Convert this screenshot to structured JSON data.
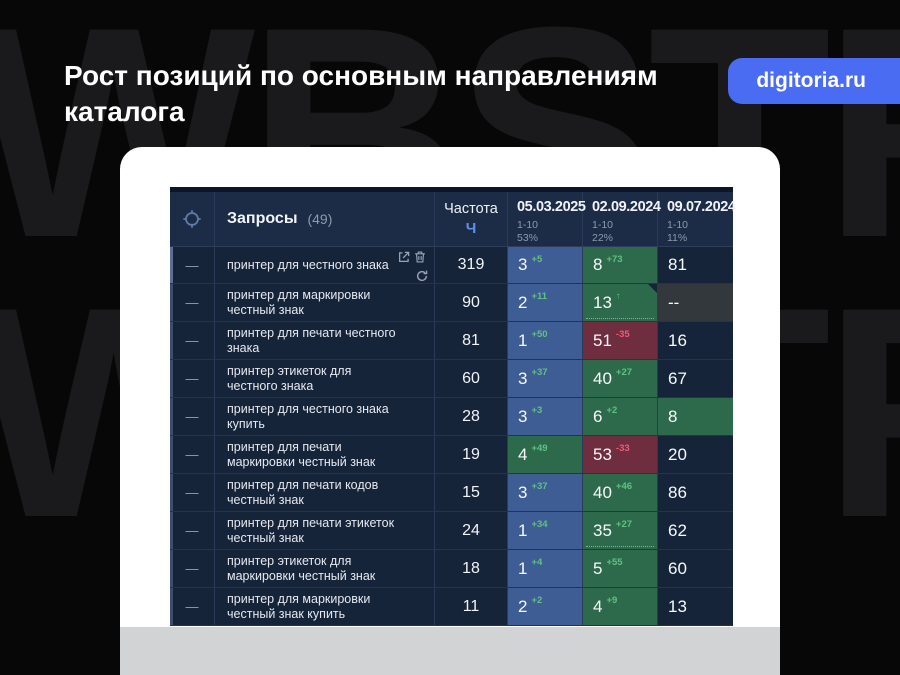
{
  "slide": {
    "title": "Рост позиций по основным направлениям каталога",
    "badge": "digitoria.ru",
    "watermark": "WBSTR"
  },
  "icons": {
    "header_target": "crosshair-icon",
    "row_handle": "dash-glyph",
    "row_actions": [
      "external-link-icon",
      "trash-icon",
      "refresh-icon"
    ]
  },
  "colors": {
    "slide_background": "#070708",
    "badge_blue": "#4a6cf2",
    "table_background": "#16243a",
    "header_background": "#1c2c47",
    "cell_blue": "#3e5d94",
    "cell_green": "#2d6a4b",
    "cell_red": "#6f2d40",
    "cell_gray": "#33383d",
    "delta_green": "#5fc184",
    "delta_red": "#f05a78",
    "frequency_unit_blue": "#5f8fe8",
    "card_footer_gray": "#d2d3d5"
  },
  "table": {
    "row_handle_glyph": "—",
    "queries_label": "Запросы",
    "queries_count": "(49)",
    "frequency_label": "Частота",
    "frequency_unit": "Ч",
    "date_columns": [
      {
        "date": "05.03.2025",
        "range": "1-10",
        "percent": "53%"
      },
      {
        "date": "02.09.2024",
        "range": "1-10",
        "percent": "22%"
      },
      {
        "date": "09.07.2024",
        "range": "1-10",
        "percent": "11%"
      }
    ],
    "rows": [
      {
        "query": "принтер для честного знака",
        "frequency": "319",
        "has_actions": true,
        "cells": [
          {
            "value": "3",
            "delta": "+5",
            "delta_color": "green",
            "bg": "blue"
          },
          {
            "value": "8",
            "delta": "+73",
            "delta_color": "green",
            "bg": "green"
          },
          {
            "value": "81",
            "delta": "",
            "delta_color": "",
            "bg": "navy"
          }
        ]
      },
      {
        "query": "принтер для маркировки честный знак",
        "frequency": "90",
        "has_actions": false,
        "cells": [
          {
            "value": "2",
            "delta": "+11",
            "delta_color": "green",
            "bg": "blue"
          },
          {
            "value": "13",
            "delta": "↑",
            "delta_color": "green",
            "bg": "green",
            "corner": true,
            "dotted": true
          },
          {
            "value": "--",
            "delta": "",
            "delta_color": "",
            "bg": "gray"
          }
        ]
      },
      {
        "query": "принтер для печати честного знака",
        "frequency": "81",
        "has_actions": false,
        "cells": [
          {
            "value": "1",
            "delta": "+50",
            "delta_color": "green",
            "bg": "blue"
          },
          {
            "value": "51",
            "delta": "-35",
            "delta_color": "red",
            "bg": "red"
          },
          {
            "value": "16",
            "delta": "",
            "delta_color": "",
            "bg": "navy"
          }
        ]
      },
      {
        "query": "принтер этикеток для честного знака",
        "frequency": "60",
        "has_actions": false,
        "cells": [
          {
            "value": "3",
            "delta": "+37",
            "delta_color": "green",
            "bg": "blue"
          },
          {
            "value": "40",
            "delta": "+27",
            "delta_color": "green",
            "bg": "green"
          },
          {
            "value": "67",
            "delta": "",
            "delta_color": "",
            "bg": "navy"
          }
        ]
      },
      {
        "query": "принтер для честного знака купить",
        "frequency": "28",
        "has_actions": false,
        "cells": [
          {
            "value": "3",
            "delta": "+3",
            "delta_color": "green",
            "bg": "blue"
          },
          {
            "value": "6",
            "delta": "+2",
            "delta_color": "green",
            "bg": "green"
          },
          {
            "value": "8",
            "delta": "",
            "delta_color": "",
            "bg": "green"
          }
        ]
      },
      {
        "query": "принтер для печати маркировки честный знак",
        "frequency": "19",
        "has_actions": false,
        "cells": [
          {
            "value": "4",
            "delta": "+49",
            "delta_color": "green",
            "bg": "green"
          },
          {
            "value": "53",
            "delta": "-33",
            "delta_color": "red",
            "bg": "red"
          },
          {
            "value": "20",
            "delta": "",
            "delta_color": "",
            "bg": "navy"
          }
        ]
      },
      {
        "query": "принтер для печати кодов честный знак",
        "frequency": "15",
        "has_actions": false,
        "cells": [
          {
            "value": "3",
            "delta": "+37",
            "delta_color": "green",
            "bg": "blue"
          },
          {
            "value": "40",
            "delta": "+46",
            "delta_color": "green",
            "bg": "green"
          },
          {
            "value": "86",
            "delta": "",
            "delta_color": "",
            "bg": "navy"
          }
        ]
      },
      {
        "query": "принтер для печати этикеток честный знак",
        "frequency": "24",
        "has_actions": false,
        "cells": [
          {
            "value": "1",
            "delta": "+34",
            "delta_color": "green",
            "bg": "blue"
          },
          {
            "value": "35",
            "delta": "+27",
            "delta_color": "green",
            "bg": "green",
            "dotted": true
          },
          {
            "value": "62",
            "delta": "",
            "delta_color": "",
            "bg": "navy"
          }
        ]
      },
      {
        "query": "принтер этикеток для маркировки честный знак",
        "frequency": "18",
        "has_actions": false,
        "cells": [
          {
            "value": "1",
            "delta": "+4",
            "delta_color": "green",
            "bg": "blue"
          },
          {
            "value": "5",
            "delta": "+55",
            "delta_color": "green",
            "bg": "green"
          },
          {
            "value": "60",
            "delta": "",
            "delta_color": "",
            "bg": "navy"
          }
        ]
      },
      {
        "query": "принтер для маркировки честный знак купить",
        "frequency": "11",
        "has_actions": false,
        "cells": [
          {
            "value": "2",
            "delta": "+2",
            "delta_color": "green",
            "bg": "blue"
          },
          {
            "value": "4",
            "delta": "+9",
            "delta_color": "green",
            "bg": "green"
          },
          {
            "value": "13",
            "delta": "",
            "delta_color": "",
            "bg": "navy"
          }
        ]
      }
    ]
  }
}
